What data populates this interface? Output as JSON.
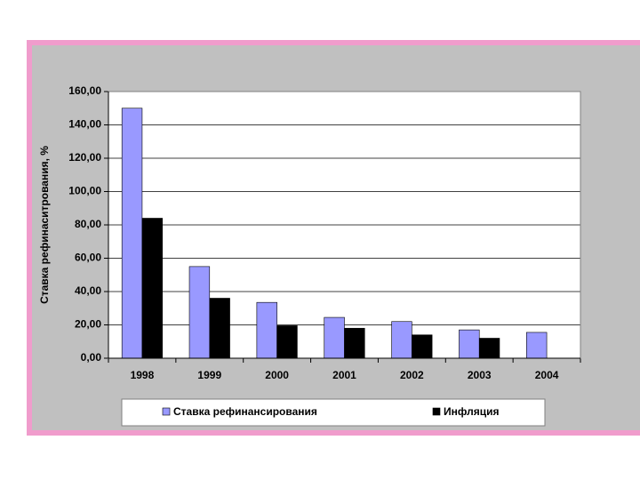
{
  "chart_data": {
    "type": "bar",
    "y_label": "Ставка рефинаситрования, %",
    "categories": [
      "1998",
      "1999",
      "2000",
      "2001",
      "2002",
      "2003",
      "2004"
    ],
    "series": [
      {
        "name": "Ставка рефинансирования",
        "color": "#9999ff",
        "values": [
          150,
          55,
          33.5,
          24.5,
          22,
          17,
          15.5
        ]
      },
      {
        "name": "Инфляция",
        "color": "#000000",
        "values": [
          84,
          36,
          19.5,
          18,
          14,
          12,
          null
        ]
      }
    ],
    "ylim": [
      0,
      160
    ],
    "yticks": [
      {
        "value": 0,
        "label": "0,00"
      },
      {
        "value": 20,
        "label": "20,00"
      },
      {
        "value": 40,
        "label": "40,00"
      },
      {
        "value": 60,
        "label": "60,00"
      },
      {
        "value": 80,
        "label": "80,00"
      },
      {
        "value": 100,
        "label": "100,00"
      },
      {
        "value": 120,
        "label": "120,00"
      },
      {
        "value": 140,
        "label": "140,00"
      },
      {
        "value": 160,
        "label": "160,00"
      }
    ],
    "grid": true
  }
}
